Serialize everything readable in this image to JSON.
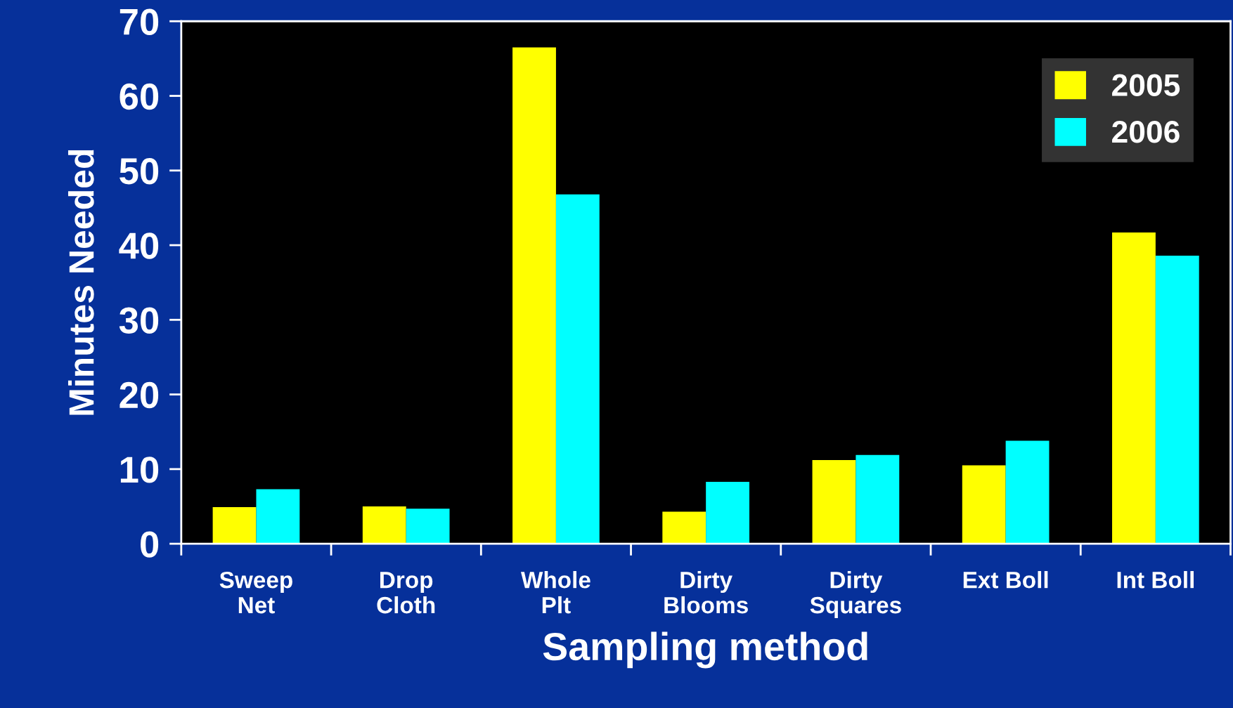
{
  "chart_data": {
    "type": "bar",
    "xlabel": "Sampling method",
    "ylabel": "Minutes Needed",
    "categories": [
      "Sweep\nNet",
      "Drop\nCloth",
      "Whole\nPlt",
      "Dirty\nBlooms",
      "Dirty\nSquares",
      "Ext Boll",
      "Int Boll"
    ],
    "series": [
      {
        "name": "2005",
        "color": "#ffff00",
        "values": [
          4.9,
          5.0,
          66.5,
          4.3,
          11.2,
          10.5,
          41.7
        ]
      },
      {
        "name": "2006",
        "color": "#00ffff",
        "values": [
          7.3,
          4.7,
          46.8,
          8.3,
          11.9,
          13.8,
          38.6
        ]
      }
    ],
    "ylim": [
      0,
      70
    ],
    "yticks": [
      0,
      10,
      20,
      30,
      40,
      50,
      60,
      70
    ],
    "grid": false,
    "legend": "top right"
  }
}
